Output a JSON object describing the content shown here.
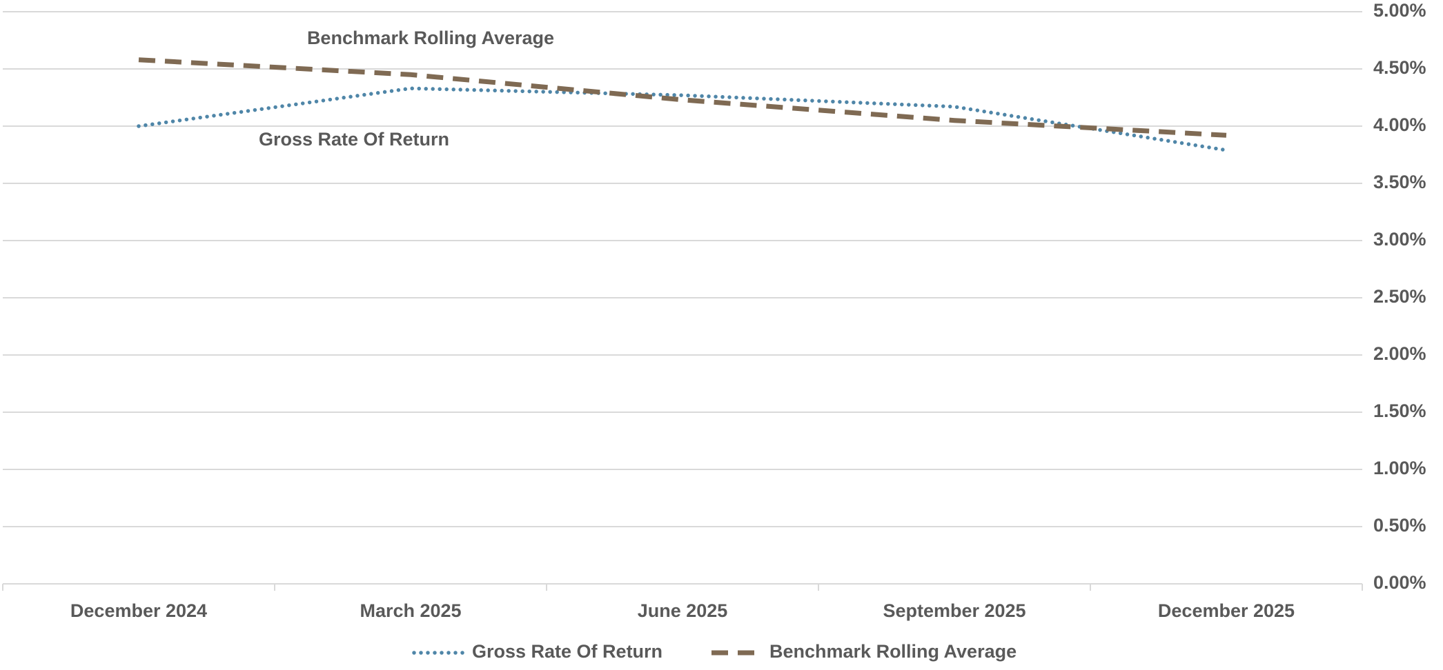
{
  "chart_data": {
    "type": "line",
    "categories": [
      "December 2024",
      "March 2025",
      "June 2025",
      "September 2025",
      "December 2025"
    ],
    "series": [
      {
        "name": "Gross Rate Of Return",
        "color": "#4f86a8",
        "style": "dotted",
        "values": [
          4.0,
          4.33,
          4.27,
          4.17,
          3.79
        ]
      },
      {
        "name": "Benchmark Rolling Average",
        "color": "#7f6a53",
        "style": "dashed",
        "values": [
          4.58,
          4.45,
          4.23,
          4.05,
          3.92
        ]
      }
    ],
    "annotations": [
      "Benchmark Rolling Average",
      "Gross Rate Of Return"
    ],
    "ylim": [
      0,
      5
    ],
    "yticks": [
      {
        "value": 0,
        "label": "0.00%"
      },
      {
        "value": 0.5,
        "label": "0.50%"
      },
      {
        "value": 1,
        "label": "1.00%"
      },
      {
        "value": 1.5,
        "label": "1.50%"
      },
      {
        "value": 2,
        "label": "2.00%"
      },
      {
        "value": 2.5,
        "label": "2.50%"
      },
      {
        "value": 3,
        "label": "3.00%"
      },
      {
        "value": 3.5,
        "label": "3.50%"
      },
      {
        "value": 4,
        "label": "4.00%"
      },
      {
        "value": 4.5,
        "label": "4.50%"
      },
      {
        "value": 5,
        "label": "5.00%"
      }
    ],
    "grid": true,
    "y_axis_side": "right",
    "legend": "bottom"
  }
}
